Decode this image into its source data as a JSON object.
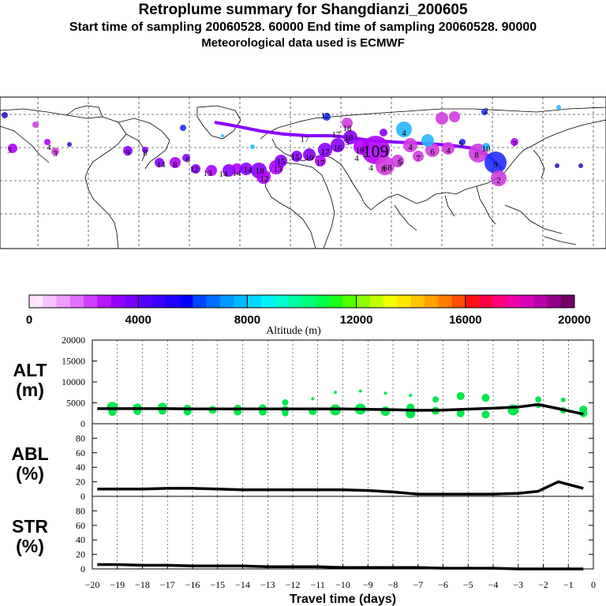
{
  "header": {
    "title": "Retroplume summary for Shangdianzi_200605",
    "subtitle": "Start time of sampling 20060528. 60000     End time of sampling 20060528. 90000",
    "met": "Meteorological data used is ECMWF"
  },
  "map": {
    "labels": [
      "12",
      "13",
      "14",
      "14",
      "14",
      "18",
      "12",
      "13",
      "15",
      "15",
      "16",
      "17",
      "17",
      "16",
      "18",
      "18",
      "18",
      "17",
      "17",
      "12",
      "7",
      "6",
      "4",
      "4",
      "9",
      "8",
      "9",
      "10",
      "7",
      "4",
      "3",
      "3",
      "2",
      "2",
      "5",
      "6",
      "4",
      "4",
      "3",
      "9",
      "8",
      "14",
      "8",
      "6",
      "4",
      "109",
      "8",
      "8",
      "5"
    ],
    "colors": {
      "violet": "#8a00ff",
      "purple": "#b000ff",
      "blue": "#1f2fff",
      "cyan": "#27b7ff",
      "magenta": "#d23ce0",
      "dark": "#3318b8"
    }
  },
  "colorbar": {
    "label": "Altitude (m)",
    "ticks": [
      "0",
      "4000",
      "8000",
      "12000",
      "16000",
      "20000"
    ],
    "colors": [
      "#ffe3ff",
      "#f7c2ff",
      "#ee9dff",
      "#e070ff",
      "#cf40ff",
      "#b517ff",
      "#9600ff",
      "#7800ff",
      "#5500ff",
      "#3a00ff",
      "#1f00ff",
      "#0000ff",
      "#0044ff",
      "#006eff",
      "#0097ff",
      "#00b9ff",
      "#00d8ff",
      "#00f2f8",
      "#00ffd0",
      "#00ffa4",
      "#00ff78",
      "#00ff4b",
      "#1dff1d",
      "#55ff00",
      "#8eff00",
      "#c4ff00",
      "#f2ff00",
      "#ffe600",
      "#ffc500",
      "#ffa200",
      "#ff7e00",
      "#ff5000",
      "#ff1010",
      "#ff0044",
      "#ff007a",
      "#f000a4",
      "#d700b8",
      "#b800a8",
      "#930088",
      "#6e0066"
    ]
  },
  "chart_data": [
    {
      "type": "line",
      "panel": "ALT",
      "ylabel": "ALT\n(m)",
      "label_line1": "ALT",
      "label_line2": "(m)",
      "xlim": [
        -20,
        0
      ],
      "ylim": [
        0,
        20000
      ],
      "yticks": [
        "0",
        "5000",
        "10000",
        "15000",
        "20000"
      ],
      "ytick_values": [
        0,
        5000,
        10000,
        15000,
        20000
      ],
      "series": [
        {
          "name": "mean altitude",
          "x": [
            -19.8,
            -19,
            -18,
            -17,
            -16,
            -15,
            -14,
            -13,
            -12,
            -11,
            -10,
            -9,
            -8,
            -7,
            -6,
            -5,
            -4,
            -3,
            -2.2,
            -1.4,
            -0.4
          ],
          "y": [
            3600,
            3600,
            3600,
            3600,
            3550,
            3550,
            3550,
            3550,
            3550,
            3550,
            3550,
            3450,
            3350,
            3200,
            3250,
            3500,
            3700,
            4000,
            4600,
            3600,
            2300
          ]
        }
      ],
      "clusters": {
        "color": "#00e84a",
        "points": [
          {
            "x": -19.2,
            "y": 3900,
            "r": 7
          },
          {
            "x": -19.2,
            "y": 2800,
            "r": 5
          },
          {
            "x": -18.2,
            "y": 3700,
            "r": 6
          },
          {
            "x": -18.2,
            "y": 3000,
            "r": 5
          },
          {
            "x": -17.2,
            "y": 3900,
            "r": 6
          },
          {
            "x": -17.2,
            "y": 3100,
            "r": 5
          },
          {
            "x": -16.2,
            "y": 3600,
            "r": 5
          },
          {
            "x": -16.2,
            "y": 2900,
            "r": 5
          },
          {
            "x": -15.2,
            "y": 3300,
            "r": 5
          },
          {
            "x": -14.2,
            "y": 3600,
            "r": 5
          },
          {
            "x": -14.2,
            "y": 2900,
            "r": 5
          },
          {
            "x": -13.2,
            "y": 3700,
            "r": 5
          },
          {
            "x": -13.2,
            "y": 2900,
            "r": 5
          },
          {
            "x": -12.3,
            "y": 5100,
            "r": 4
          },
          {
            "x": -12.3,
            "y": 3300,
            "r": 5
          },
          {
            "x": -12.3,
            "y": 2500,
            "r": 4
          },
          {
            "x": -11.2,
            "y": 6000,
            "r": 2
          },
          {
            "x": -11.2,
            "y": 3000,
            "r": 5
          },
          {
            "x": -10.3,
            "y": 7500,
            "r": 2
          },
          {
            "x": -10.3,
            "y": 3300,
            "r": 7
          },
          {
            "x": -9.3,
            "y": 7800,
            "r": 2
          },
          {
            "x": -9.3,
            "y": 3500,
            "r": 7
          },
          {
            "x": -8.3,
            "y": 7300,
            "r": 2
          },
          {
            "x": -8.3,
            "y": 3000,
            "r": 6
          },
          {
            "x": -7.3,
            "y": 6800,
            "r": 2
          },
          {
            "x": -7.3,
            "y": 3900,
            "r": 5
          },
          {
            "x": -7.3,
            "y": 2400,
            "r": 6
          },
          {
            "x": -6.3,
            "y": 5800,
            "r": 4
          },
          {
            "x": -6.3,
            "y": 3100,
            "r": 5
          },
          {
            "x": -5.3,
            "y": 6600,
            "r": 5
          },
          {
            "x": -5.3,
            "y": 2500,
            "r": 5
          },
          {
            "x": -4.3,
            "y": 6200,
            "r": 5
          },
          {
            "x": -4.3,
            "y": 2200,
            "r": 5
          },
          {
            "x": -3.2,
            "y": 3300,
            "r": 7
          },
          {
            "x": -2.2,
            "y": 5800,
            "r": 4
          },
          {
            "x": -2.2,
            "y": 4300,
            "r": 3
          },
          {
            "x": -1.2,
            "y": 5700,
            "r": 3
          },
          {
            "x": -1.2,
            "y": 3200,
            "r": 4
          },
          {
            "x": -0.4,
            "y": 3400,
            "r": 5
          },
          {
            "x": -0.4,
            "y": 2500,
            "r": 5
          }
        ]
      }
    },
    {
      "type": "line",
      "panel": "ABL",
      "ylabel": "ABL\n(%)",
      "label_line1": "ABL",
      "label_line2": "(%)",
      "xlim": [
        -20,
        0
      ],
      "ylim": [
        0,
        100
      ],
      "yticks": [
        "0",
        "20",
        "40",
        "60",
        "80"
      ],
      "ytick_values": [
        0,
        20,
        40,
        60,
        80
      ],
      "series": [
        {
          "name": "ABL fraction",
          "x": [
            -19.8,
            -19,
            -18,
            -17,
            -16,
            -15,
            -14,
            -13,
            -12,
            -11,
            -10,
            -9,
            -8,
            -7,
            -6,
            -5,
            -4,
            -3,
            -2.2,
            -1.4,
            -0.4
          ],
          "y": [
            10,
            10,
            10,
            11,
            11,
            10,
            9,
            9,
            9,
            9,
            9,
            8,
            6,
            3,
            3,
            3,
            3,
            4,
            7,
            20,
            11
          ]
        }
      ]
    },
    {
      "type": "line",
      "panel": "STR",
      "ylabel": "STR\n(%)",
      "label_line1": "STR",
      "label_line2": "(%)",
      "xlim": [
        -20,
        0
      ],
      "ylim": [
        0,
        100
      ],
      "yticks": [
        "0",
        "20",
        "40",
        "60",
        "80"
      ],
      "ytick_values": [
        0,
        20,
        40,
        60,
        80
      ],
      "xlabel": "Travel time (days)",
      "xticks": [
        "-20",
        "-19",
        "-18",
        "-17",
        "-16",
        "-15",
        "-14",
        "-13",
        "-12",
        "-11",
        "-10",
        "-9",
        "-8",
        "-7",
        "-6",
        "-5",
        "-4",
        "-3",
        "-2",
        "-1",
        "0"
      ],
      "series": [
        {
          "name": "stratospheric fraction",
          "x": [
            -19.8,
            -19,
            -18,
            -17,
            -16,
            -15,
            -14,
            -13,
            -12,
            -11,
            -10,
            -9,
            -8,
            -7,
            -6,
            -5,
            -4,
            -3,
            -2.2,
            -1.4,
            -0.4
          ],
          "y": [
            6,
            6,
            5,
            5,
            4,
            4,
            4,
            3,
            3,
            3,
            2,
            2,
            2,
            2,
            1,
            1,
            1,
            0,
            0,
            0,
            0
          ]
        }
      ]
    }
  ]
}
